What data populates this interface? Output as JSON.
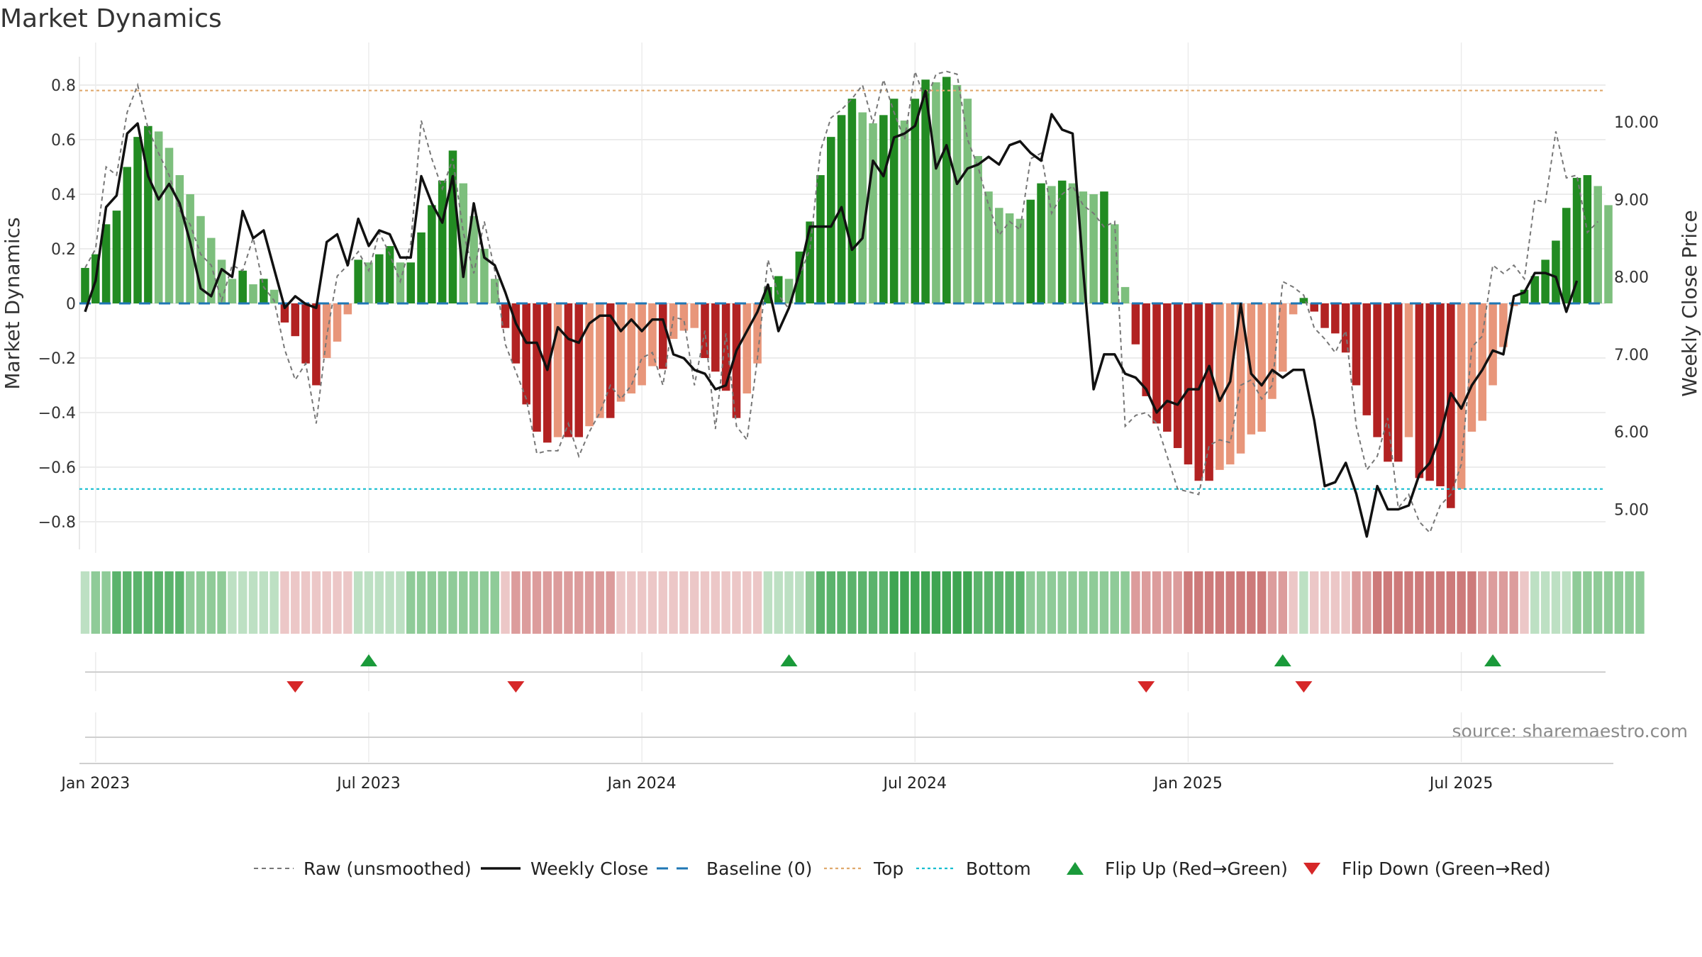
{
  "chart_data": {
    "type": "bar",
    "title": "Market Dynamics",
    "ylabel": "Market Dynamics",
    "y2label": "Weekly Close Price",
    "ylim": [
      -0.9,
      0.9
    ],
    "y2lim": [
      4.3,
      10.65
    ],
    "yticks": [
      {
        "v": 0.8,
        "label": "0.8"
      },
      {
        "v": 0.6,
        "label": "0.6"
      },
      {
        "v": 0.4,
        "label": "0.4"
      },
      {
        "v": 0.2,
        "label": "0.2"
      },
      {
        "v": 0,
        "label": "0"
      },
      {
        "v": -0.2,
        "label": "−0.2"
      },
      {
        "v": -0.4,
        "label": "−0.4"
      },
      {
        "v": -0.6,
        "label": "−0.6"
      },
      {
        "v": -0.8,
        "label": "−0.8"
      }
    ],
    "y2ticks": [
      {
        "v": 10,
        "label": "10.00"
      },
      {
        "v": 9,
        "label": "9.00"
      },
      {
        "v": 8,
        "label": "8.00"
      },
      {
        "v": 7,
        "label": "7.00"
      },
      {
        "v": 6,
        "label": "6.00"
      },
      {
        "v": 5,
        "label": "5.00"
      }
    ],
    "xticks": [
      {
        "i": 1,
        "label": "Jan 2023"
      },
      {
        "i": 27,
        "label": "Jul 2023"
      },
      {
        "i": 53,
        "label": "Jan 2024"
      },
      {
        "i": 79,
        "label": "Jul 2024"
      },
      {
        "i": 105,
        "label": "Jan 2025"
      },
      {
        "i": 131,
        "label": "Jul 2025"
      }
    ],
    "top_line": 0.78,
    "bottom_line": -0.68,
    "baseline": 0,
    "grid": true,
    "legend_position": "bottom-center",
    "colors": {
      "bull_strong": "#228b22",
      "bull_weak": "#7dbf7d",
      "bear_strong": "#b22222",
      "bear_weak": "#e8967a",
      "price_line": "#111111",
      "raw_line": "#777777",
      "baseline": "#1f77b4",
      "top": "#e0a96d",
      "bottom": "#17becf",
      "flip_up": "#1a9a3a",
      "flip_down": "#d62728"
    },
    "series": [
      {
        "name": "Market Dynamics",
        "values": [
          0.13,
          0.18,
          0.29,
          0.34,
          0.5,
          0.61,
          0.65,
          0.63,
          0.57,
          0.47,
          0.4,
          0.32,
          0.24,
          0.16,
          0.09,
          0.12,
          0.07,
          0.09,
          0.05,
          -0.07,
          -0.12,
          -0.22,
          -0.3,
          -0.2,
          -0.14,
          -0.04,
          0.16,
          0.15,
          0.18,
          0.21,
          0.15,
          0.15,
          0.26,
          0.36,
          0.45,
          0.56,
          0.44,
          0.32,
          0.2,
          0.09,
          -0.09,
          -0.22,
          -0.37,
          -0.47,
          -0.51,
          -0.49,
          -0.49,
          -0.49,
          -0.45,
          -0.42,
          -0.42,
          -0.36,
          -0.33,
          -0.3,
          -0.23,
          -0.24,
          -0.13,
          -0.1,
          -0.09,
          -0.2,
          -0.25,
          -0.32,
          -0.42,
          -0.33,
          -0.22,
          0.06,
          0.1,
          0.09,
          0.19,
          0.3,
          0.47,
          0.61,
          0.69,
          0.75,
          0.7,
          0.66,
          0.69,
          0.75,
          0.67,
          0.75,
          0.82,
          0.81,
          0.83,
          0.8,
          0.75,
          0.54,
          0.41,
          0.35,
          0.33,
          0.31,
          0.38,
          0.44,
          0.43,
          0.45,
          0.44,
          0.41,
          0.4,
          0.41,
          0.29,
          0.06,
          -0.15,
          -0.34,
          -0.44,
          -0.47,
          -0.53,
          -0.59,
          -0.65,
          -0.65,
          -0.61,
          -0.59,
          -0.55,
          -0.48,
          -0.47,
          -0.35,
          -0.25,
          -0.04,
          0.02,
          -0.03,
          -0.09,
          -0.11,
          -0.18,
          -0.3,
          -0.41,
          -0.49,
          -0.58,
          -0.58,
          -0.49,
          -0.64,
          -0.65,
          -0.67,
          -0.75,
          -0.68,
          -0.47,
          -0.43,
          -0.3,
          -0.16,
          -0.01,
          0.05,
          0.1,
          0.16,
          0.23,
          0.35,
          0.46,
          0.47,
          0.43,
          0.36
        ]
      },
      {
        "name": "Raw (unsmoothed)",
        "values": [
          0.13,
          0.2,
          0.5,
          0.47,
          0.7,
          0.8,
          0.64,
          0.55,
          0.47,
          0.34,
          0.29,
          0.18,
          0.14,
          0.01,
          0.14,
          0.12,
          0.24,
          0.06,
          0.01,
          -0.17,
          -0.28,
          -0.22,
          -0.44,
          -0.12,
          0.1,
          0.14,
          0.19,
          0.12,
          0.26,
          0.18,
          0.08,
          0.22,
          0.67,
          0.53,
          0.42,
          0.53,
          0.26,
          0.11,
          0.3,
          0.12,
          -0.15,
          -0.25,
          -0.35,
          -0.55,
          -0.54,
          -0.54,
          -0.44,
          -0.56,
          -0.47,
          -0.4,
          -0.3,
          -0.35,
          -0.3,
          -0.2,
          -0.18,
          -0.3,
          -0.05,
          -0.06,
          -0.3,
          -0.1,
          -0.46,
          -0.11,
          -0.45,
          -0.5,
          -0.2,
          0.16,
          0.03,
          -0.02,
          0.1,
          0.2,
          0.56,
          0.68,
          0.71,
          0.75,
          0.8,
          0.66,
          0.82,
          0.7,
          0.6,
          0.85,
          0.74,
          0.84,
          0.85,
          0.84,
          0.6,
          0.5,
          0.36,
          0.25,
          0.3,
          0.27,
          0.53,
          0.55,
          0.33,
          0.4,
          0.43,
          0.36,
          0.33,
          0.28,
          0.3,
          -0.45,
          -0.41,
          -0.4,
          -0.44,
          -0.56,
          -0.68,
          -0.69,
          -0.7,
          -0.52,
          -0.5,
          -0.51,
          -0.3,
          -0.28,
          -0.35,
          -0.3,
          0.08,
          0.06,
          0.03,
          -0.09,
          -0.13,
          -0.18,
          -0.1,
          -0.45,
          -0.61,
          -0.56,
          -0.42,
          -0.75,
          -0.7,
          -0.8,
          -0.84,
          -0.74,
          -0.7,
          -0.59,
          -0.16,
          -0.12,
          0.14,
          0.11,
          0.14,
          0.09,
          0.38,
          0.37,
          0.63,
          0.46,
          0.47,
          0.26,
          0.3
        ]
      },
      {
        "name": "Weekly Close",
        "values": [
          7.55,
          7.95,
          8.9,
          9.05,
          9.85,
          9.98,
          9.3,
          9.0,
          9.2,
          8.95,
          8.45,
          7.85,
          7.75,
          8.1,
          8.0,
          8.85,
          8.5,
          8.6,
          8.1,
          7.6,
          7.75,
          7.65,
          7.6,
          8.45,
          8.55,
          8.15,
          8.75,
          8.4,
          8.6,
          8.55,
          8.25,
          8.25,
          9.3,
          8.95,
          8.7,
          9.3,
          8.0,
          8.95,
          8.25,
          8.15,
          7.8,
          7.4,
          7.15,
          7.15,
          6.8,
          7.35,
          7.2,
          7.15,
          7.4,
          7.5,
          7.5,
          7.3,
          7.45,
          7.3,
          7.45,
          7.45,
          7.0,
          6.95,
          6.8,
          6.75,
          6.55,
          6.6,
          7.05,
          7.3,
          7.55,
          7.9,
          7.3,
          7.6,
          8.05,
          8.65,
          8.65,
          8.65,
          8.9,
          8.35,
          8.5,
          9.5,
          9.3,
          9.8,
          9.85,
          9.95,
          10.4,
          9.4,
          9.7,
          9.2,
          9.4,
          9.45,
          9.55,
          9.45,
          9.7,
          9.75,
          9.6,
          9.5,
          10.1,
          9.9,
          9.85,
          8.1,
          6.55,
          7.0,
          7.0,
          6.75,
          6.7,
          6.55,
          6.25,
          6.4,
          6.35,
          6.55,
          6.55,
          6.85,
          6.4,
          6.65,
          7.65,
          6.75,
          6.6,
          6.8,
          6.7,
          6.8,
          6.8,
          6.15,
          5.3,
          5.35,
          5.6,
          5.2,
          4.65,
          5.3,
          5.0,
          5.0,
          5.05,
          5.45,
          5.6,
          5.95,
          6.5,
          6.3,
          6.6,
          6.8,
          7.05,
          7.0,
          7.75,
          7.8,
          8.05,
          8.05,
          8.0,
          7.55,
          7.95
        ]
      }
    ],
    "regime_strip": [
      1,
      2,
      2,
      3,
      3,
      3,
      3,
      3,
      3,
      3,
      2,
      2,
      2,
      2,
      1,
      1,
      1,
      1,
      1,
      -1,
      -1,
      -1,
      -1,
      -1,
      -1,
      -1,
      1,
      1,
      1,
      1,
      1,
      2,
      2,
      2,
      2,
      2,
      2,
      2,
      2,
      2,
      -1,
      -2,
      -2,
      -2,
      -2,
      -2,
      -2,
      -2,
      -2,
      -2,
      -2,
      -1,
      -1,
      -1,
      -1,
      -1,
      -1,
      -1,
      -1,
      -1,
      -1,
      -1,
      -1,
      -1,
      -1,
      1,
      1,
      1,
      1,
      2,
      3,
      3,
      3,
      3,
      3,
      3,
      3,
      4,
      4,
      4,
      4,
      4,
      4,
      4,
      4,
      3,
      3,
      3,
      3,
      3,
      2,
      2,
      2,
      2,
      2,
      2,
      2,
      2,
      2,
      2,
      -2,
      -2,
      -2,
      -2,
      -2,
      -3,
      -3,
      -3,
      -3,
      -3,
      -3,
      -3,
      -3,
      -2,
      -2,
      -1,
      1,
      -1,
      -1,
      -1,
      -1,
      -2,
      -2,
      -3,
      -3,
      -3,
      -3,
      -3,
      -3,
      -3,
      -3,
      -3,
      -3,
      -2,
      -2,
      -2,
      -2,
      -1,
      1,
      1,
      1,
      1,
      2,
      2,
      2,
      2,
      2,
      2,
      2
    ],
    "flips": [
      {
        "i": 20,
        "dir": "down"
      },
      {
        "i": 27,
        "dir": "up"
      },
      {
        "i": 41,
        "dir": "down"
      },
      {
        "i": 67,
        "dir": "up"
      },
      {
        "i": 101,
        "dir": "down"
      },
      {
        "i": 114,
        "dir": "up"
      },
      {
        "i": 116,
        "dir": "down"
      },
      {
        "i": 134,
        "dir": "up"
      }
    ],
    "legend": [
      {
        "label": "Raw (unsmoothed)",
        "kind": "dash",
        "color": "#777777"
      },
      {
        "label": "Weekly Close",
        "kind": "solid",
        "color": "#111111"
      },
      {
        "label": "Baseline (0)",
        "kind": "longdash",
        "color": "#1f77b4"
      },
      {
        "label": "Top",
        "kind": "dot",
        "color": "#e0a96d"
      },
      {
        "label": "Bottom",
        "kind": "dot",
        "color": "#17becf"
      },
      {
        "label": "Flip Up (Red→Green)",
        "kind": "up",
        "color": "#1a9a3a"
      },
      {
        "label": "Flip Down (Green→Red)",
        "kind": "down",
        "color": "#d62728"
      }
    ],
    "source_text": "source: sharemaestro.com"
  }
}
